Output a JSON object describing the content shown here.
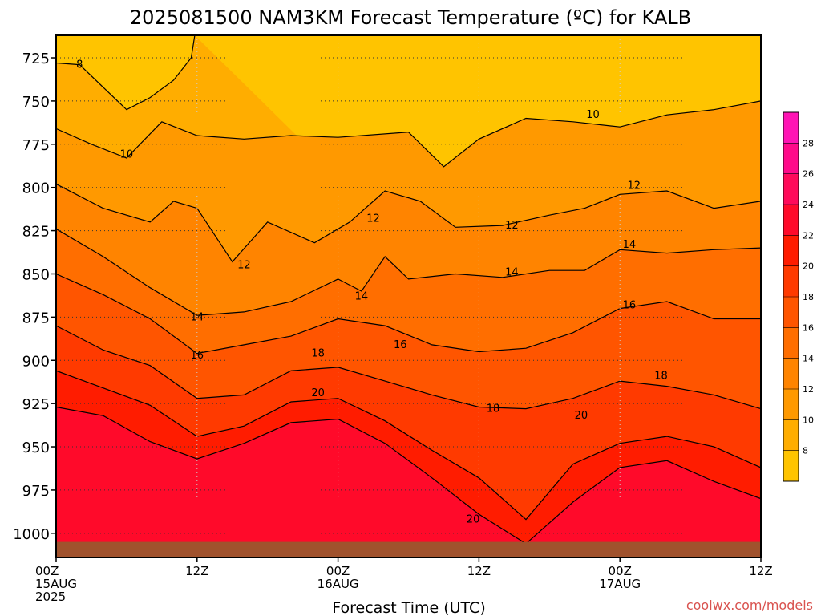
{
  "chart_data": {
    "type": "heatmap",
    "title": "2025081500 NAM3KM Forecast Temperature (ºC) for KALB",
    "xlabel": "Forecast Time (UTC)",
    "ylabel": "",
    "credit": "coolwx.com/models",
    "x_range_hours": [
      0,
      60
    ],
    "x_ticks": [
      {
        "hour": 0,
        "lines": [
          "00Z",
          "15AUG",
          "2025"
        ]
      },
      {
        "hour": 12,
        "lines": [
          "12Z"
        ]
      },
      {
        "hour": 24,
        "lines": [
          "00Z",
          "16AUG"
        ]
      },
      {
        "hour": 36,
        "lines": [
          "12Z"
        ]
      },
      {
        "hour": 48,
        "lines": [
          "00Z",
          "17AUG"
        ]
      },
      {
        "hour": 60,
        "lines": [
          "12Z"
        ]
      }
    ],
    "y_axis": {
      "quantity": "pressure (hPa)",
      "inverted": true,
      "range": [
        712,
        1014
      ],
      "ticks": [
        725,
        750,
        775,
        800,
        825,
        850,
        875,
        900,
        925,
        950,
        975,
        1000
      ]
    },
    "grid": true,
    "colorbar": {
      "location": "right",
      "levels": [
        6,
        8,
        10,
        12,
        14,
        16,
        18,
        20,
        22,
        24,
        26,
        28,
        30
      ],
      "tick_labels": [
        8,
        10,
        12,
        14,
        16,
        18,
        20,
        22,
        24,
        26,
        28
      ],
      "colors": [
        "#ffc400",
        "#ffad00",
        "#ff9900",
        "#ff8400",
        "#ff6e00",
        "#ff5500",
        "#ff3a00",
        "#ff1c00",
        "#ff0a2a",
        "#ff0a5a",
        "#ff0a8a",
        "#ff14b4"
      ]
    },
    "ground_color": "#a0522d",
    "isotherms": [
      {
        "temp": 8,
        "points": [
          [
            0,
            728
          ],
          [
            2,
            729
          ],
          [
            4,
            742
          ],
          [
            6,
            755
          ],
          [
            8,
            748
          ],
          [
            10,
            738
          ],
          [
            11.5,
            725
          ],
          [
            11.8,
            712
          ]
        ]
      },
      {
        "temp": 10,
        "points": [
          [
            0,
            766
          ],
          [
            3,
            775
          ],
          [
            6,
            783
          ],
          [
            9,
            762
          ],
          [
            12,
            770
          ],
          [
            16,
            772
          ],
          [
            20,
            770
          ],
          [
            24,
            771
          ],
          [
            30,
            768
          ],
          [
            33,
            788
          ],
          [
            36,
            772
          ],
          [
            40,
            760
          ],
          [
            44,
            762
          ],
          [
            48,
            765
          ],
          [
            52,
            758
          ],
          [
            56,
            755
          ],
          [
            60,
            750
          ]
        ]
      },
      {
        "temp": 12,
        "points": [
          [
            0,
            798
          ],
          [
            4,
            812
          ],
          [
            8,
            820
          ],
          [
            10,
            808
          ],
          [
            12,
            812
          ],
          [
            15,
            843
          ],
          [
            18,
            820
          ],
          [
            22,
            832
          ],
          [
            25,
            820
          ],
          [
            28,
            802
          ],
          [
            31,
            808
          ],
          [
            34,
            823
          ],
          [
            38,
            822
          ],
          [
            42,
            816
          ],
          [
            45,
            812
          ],
          [
            48,
            804
          ],
          [
            52,
            802
          ],
          [
            56,
            812
          ],
          [
            60,
            808
          ]
        ]
      },
      {
        "temp": 14,
        "points": [
          [
            0,
            824
          ],
          [
            4,
            840
          ],
          [
            8,
            858
          ],
          [
            12,
            874
          ],
          [
            16,
            872
          ],
          [
            20,
            866
          ],
          [
            24,
            853
          ],
          [
            26,
            860
          ],
          [
            28,
            840
          ],
          [
            30,
            853
          ],
          [
            34,
            850
          ],
          [
            38,
            852
          ],
          [
            42,
            848
          ],
          [
            45,
            848
          ],
          [
            48,
            836
          ],
          [
            52,
            838
          ],
          [
            56,
            836
          ],
          [
            60,
            835
          ]
        ]
      },
      {
        "temp": 16,
        "points": [
          [
            0,
            850
          ],
          [
            4,
            862
          ],
          [
            8,
            876
          ],
          [
            12,
            896
          ],
          [
            16,
            891
          ],
          [
            20,
            886
          ],
          [
            24,
            876
          ],
          [
            28,
            880
          ],
          [
            32,
            891
          ],
          [
            36,
            895
          ],
          [
            40,
            893
          ],
          [
            44,
            884
          ],
          [
            48,
            870
          ],
          [
            52,
            866
          ],
          [
            56,
            876
          ],
          [
            60,
            876
          ]
        ]
      },
      {
        "temp": 18,
        "points": [
          [
            0,
            880
          ],
          [
            4,
            894
          ],
          [
            8,
            903
          ],
          [
            12,
            922
          ],
          [
            16,
            920
          ],
          [
            20,
            906
          ],
          [
            24,
            904
          ],
          [
            28,
            912
          ],
          [
            32,
            920
          ],
          [
            36,
            927
          ],
          [
            40,
            928
          ],
          [
            44,
            922
          ],
          [
            48,
            912
          ],
          [
            52,
            915
          ],
          [
            56,
            920
          ],
          [
            60,
            928
          ]
        ]
      },
      {
        "temp": 20,
        "points": [
          [
            0,
            906
          ],
          [
            4,
            916
          ],
          [
            8,
            926
          ],
          [
            12,
            944
          ],
          [
            16,
            938
          ],
          [
            20,
            924
          ],
          [
            24,
            922
          ],
          [
            28,
            935
          ],
          [
            32,
            952
          ],
          [
            36,
            968
          ],
          [
            40,
            992
          ],
          [
            44,
            960
          ],
          [
            48,
            948
          ],
          [
            52,
            944
          ],
          [
            56,
            950
          ],
          [
            60,
            962
          ]
        ]
      },
      {
        "temp": 22,
        "points": [
          [
            0,
            927
          ],
          [
            4,
            932
          ],
          [
            8,
            947
          ],
          [
            12,
            957
          ],
          [
            16,
            948
          ],
          [
            20,
            936
          ],
          [
            24,
            934
          ],
          [
            28,
            948
          ],
          [
            32,
            968
          ],
          [
            36,
            989
          ],
          [
            40,
            1006
          ],
          [
            44,
            982
          ],
          [
            48,
            962
          ],
          [
            52,
            958
          ],
          [
            56,
            970
          ],
          [
            60,
            980
          ]
        ]
      }
    ],
    "contour_labels": [
      {
        "text": "8",
        "hour": 2,
        "p": 729
      },
      {
        "text": "10",
        "hour": 6,
        "p": 781
      },
      {
        "text": "10",
        "hour": 45.7,
        "p": 758
      },
      {
        "text": "12",
        "hour": 16,
        "p": 845
      },
      {
        "text": "12",
        "hour": 27,
        "p": 818
      },
      {
        "text": "12",
        "hour": 38.8,
        "p": 822
      },
      {
        "text": "12",
        "hour": 49.2,
        "p": 799
      },
      {
        "text": "14",
        "hour": 12,
        "p": 875
      },
      {
        "text": "14",
        "hour": 26,
        "p": 863
      },
      {
        "text": "14",
        "hour": 38.8,
        "p": 849
      },
      {
        "text": "14",
        "hour": 48.8,
        "p": 833
      },
      {
        "text": "16",
        "hour": 12,
        "p": 897
      },
      {
        "text": "16",
        "hour": 29.3,
        "p": 891
      },
      {
        "text": "16",
        "hour": 48.8,
        "p": 868
      },
      {
        "text": "18",
        "hour": 22.3,
        "p": 896
      },
      {
        "text": "18",
        "hour": 37.2,
        "p": 928
      },
      {
        "text": "18",
        "hour": 51.5,
        "p": 909
      },
      {
        "text": "20",
        "hour": 22.3,
        "p": 919
      },
      {
        "text": "20",
        "hour": 44.7,
        "p": 932
      },
      {
        "text": "20",
        "hour": 35.5,
        "p": 992
      }
    ]
  }
}
